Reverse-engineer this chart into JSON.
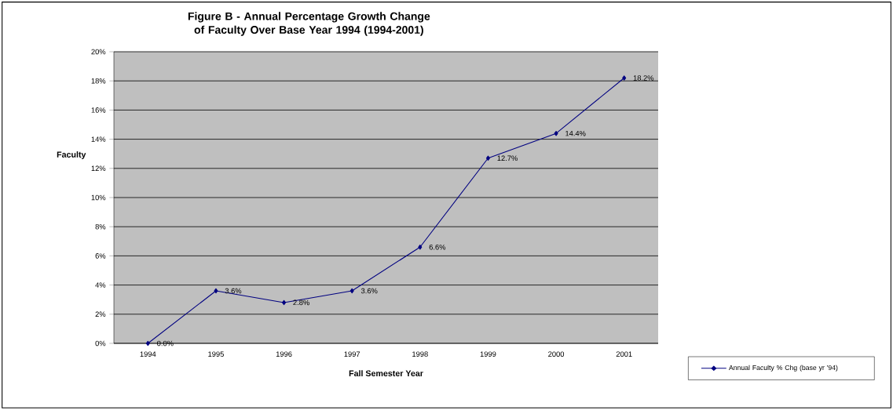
{
  "chart_data": {
    "type": "line",
    "title": "Figure B - Annual Percentage Growth Change of Faculty Over Base Year 1994 (1994-2001)",
    "xlabel": "Fall Semester Year",
    "ylabel": "Faculty",
    "categories": [
      "1994",
      "1995",
      "1996",
      "1997",
      "1998",
      "1999",
      "2000",
      "2001"
    ],
    "series": [
      {
        "name": "Annual Faculty % Chg (base yr '94)",
        "color": "#000080",
        "values": [
          0.0,
          3.6,
          2.8,
          3.6,
          6.6,
          12.7,
          14.4,
          18.2
        ],
        "value_labels": [
          "0.0%",
          "3.6%",
          "2.8%",
          "3.6%",
          "6.6%",
          "12.7%",
          "14.4%",
          "18.2%"
        ]
      }
    ],
    "ylim": [
      0,
      20
    ],
    "yticks": [
      {
        "value": 0,
        "label": "0%"
      },
      {
        "value": 2,
        "label": "2%"
      },
      {
        "value": 4,
        "label": "4%"
      },
      {
        "value": 6,
        "label": "6%"
      },
      {
        "value": 8,
        "label": "8%"
      },
      {
        "value": 10,
        "label": "10%"
      },
      {
        "value": 12,
        "label": "12%"
      },
      {
        "value": 14,
        "label": "14%"
      },
      {
        "value": 16,
        "label": "16%"
      },
      {
        "value": 18,
        "label": "18%"
      },
      {
        "value": 20,
        "label": "20%"
      }
    ],
    "grid": "y",
    "legend": "bottom right",
    "marker": "diamond",
    "line_style": "solid"
  }
}
